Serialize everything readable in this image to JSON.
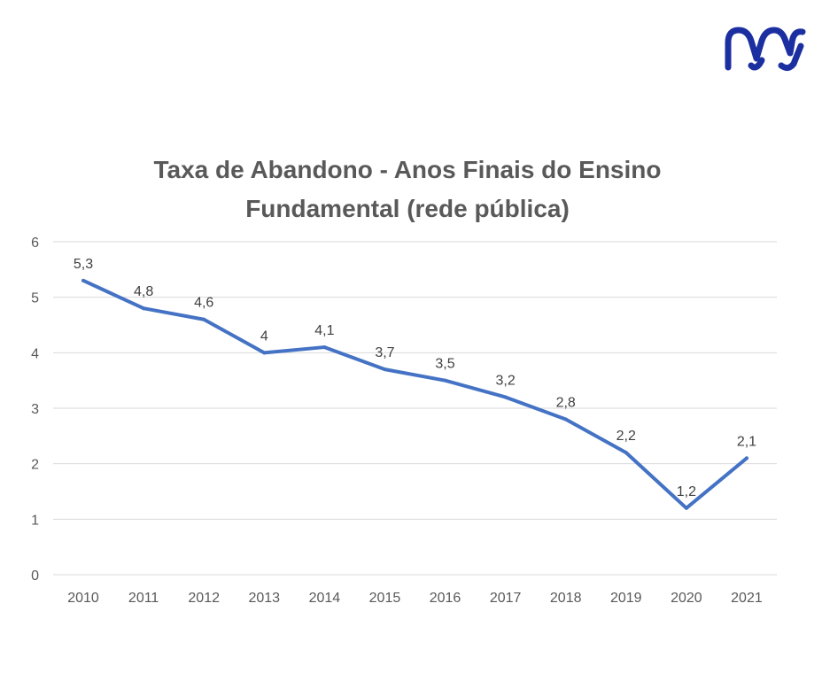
{
  "logo": {
    "brand_color": "#1c2fa0",
    "icon": "mm-brand-logo"
  },
  "chart_data": {
    "type": "line",
    "title_lines": [
      "Taxa de Abandono - Anos Finais do Ensino",
      "Fundamental (rede pública)"
    ],
    "categories": [
      "2010",
      "2011",
      "2012",
      "2013",
      "2014",
      "2015",
      "2016",
      "2017",
      "2018",
      "2019",
      "2020",
      "2021"
    ],
    "series": [
      {
        "values": [
          5.3,
          4.8,
          4.6,
          4.0,
          4.1,
          3.7,
          3.5,
          3.2,
          2.8,
          2.2,
          1.2,
          2.1
        ],
        "labels": [
          "5,3",
          "4,8",
          "4,6",
          "4",
          "4,1",
          "3,7",
          "3,5",
          "3,2",
          "2,8",
          "2,2",
          "1,2",
          "2,1"
        ],
        "color": "#4472c4"
      }
    ],
    "ylim": [
      0,
      6
    ],
    "yticks": [
      "0",
      "1",
      "2",
      "3",
      "4",
      "5",
      "6"
    ],
    "grid": true,
    "legend": "none"
  }
}
